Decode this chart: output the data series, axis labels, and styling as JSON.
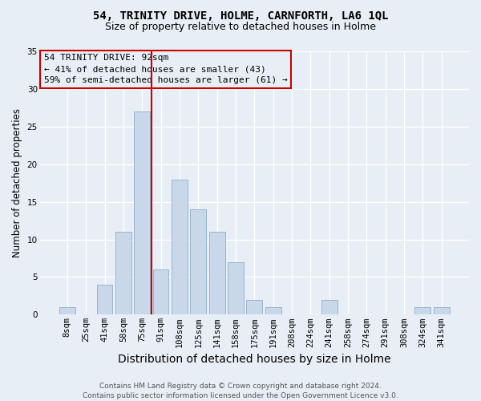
{
  "title": "54, TRINITY DRIVE, HOLME, CARNFORTH, LA6 1QL",
  "subtitle": "Size of property relative to detached houses in Holme",
  "xlabel": "Distribution of detached houses by size in Holme",
  "ylabel": "Number of detached properties",
  "bar_color": "#c8d8ea",
  "bar_edge_color": "#9ab4cc",
  "bg_color": "#e8eef5",
  "plot_bg_color": "#e8eef5",
  "grid_color": "#ffffff",
  "annotation_box_color": "#cc0000",
  "vline_color": "#cc0000",
  "vline_x_index": 5,
  "annotation_text": "54 TRINITY DRIVE: 92sqm\n← 41% of detached houses are smaller (43)\n59% of semi-detached houses are larger (61) →",
  "categories": [
    "8sqm",
    "25sqm",
    "41sqm",
    "58sqm",
    "75sqm",
    "91sqm",
    "108sqm",
    "125sqm",
    "141sqm",
    "158sqm",
    "175sqm",
    "191sqm",
    "208sqm",
    "224sqm",
    "241sqm",
    "258sqm",
    "274sqm",
    "291sqm",
    "308sqm",
    "324sqm",
    "341sqm"
  ],
  "values": [
    1,
    0,
    4,
    11,
    27,
    6,
    18,
    14,
    11,
    7,
    2,
    1,
    0,
    0,
    2,
    0,
    0,
    0,
    0,
    1,
    1
  ],
  "ylim": [
    0,
    35
  ],
  "yticks": [
    0,
    5,
    10,
    15,
    20,
    25,
    30,
    35
  ],
  "footer": "Contains HM Land Registry data © Crown copyright and database right 2024.\nContains public sector information licensed under the Open Government Licence v3.0.",
  "title_fontsize": 10,
  "subtitle_fontsize": 9,
  "xlabel_fontsize": 10,
  "ylabel_fontsize": 8.5,
  "tick_fontsize": 7.5,
  "annotation_fontsize": 8,
  "footer_fontsize": 6.5
}
